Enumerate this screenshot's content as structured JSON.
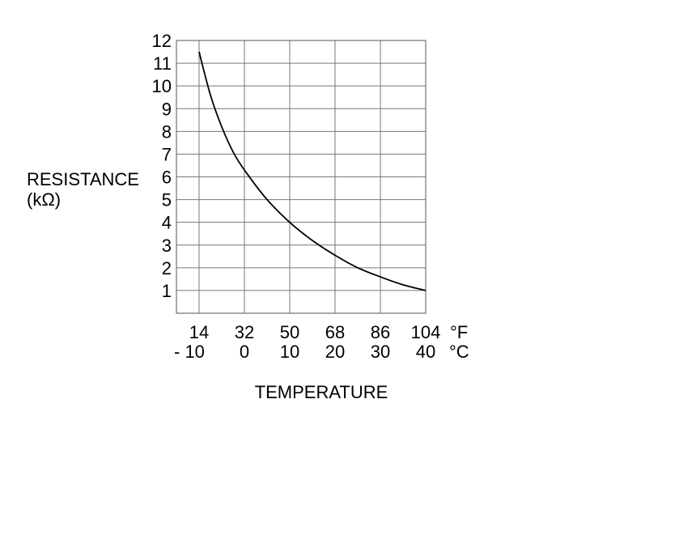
{
  "chart_data": {
    "type": "line",
    "title": "",
    "ylabel": [
      "RESISTANCE",
      "(kΩ)"
    ],
    "xlabel": "TEMPERATURE",
    "ylim": [
      0,
      12
    ],
    "xlim_c": [
      -15,
      40
    ],
    "grid": true,
    "y_ticks": [
      1,
      2,
      3,
      4,
      5,
      6,
      7,
      8,
      9,
      10,
      11,
      12
    ],
    "x_ticks_f": [
      "14",
      "32",
      "50",
      "68",
      "86",
      "104"
    ],
    "x_ticks_c": [
      "- 10",
      "0",
      "10",
      "20",
      "30",
      "40"
    ],
    "x_tick_values_c": [
      -10,
      0,
      10,
      20,
      30,
      40
    ],
    "unit_f": "°F",
    "unit_c": "°C",
    "series": [
      {
        "x_c": [
          -10,
          -7.5,
          -5,
          -2.5,
          0,
          5,
          10,
          15,
          20,
          25,
          30,
          35,
          40
        ],
        "y": [
          11.5,
          9.6,
          8.2,
          7.1,
          6.3,
          5.0,
          4.0,
          3.2,
          2.55,
          2.0,
          1.6,
          1.25,
          1.0
        ]
      }
    ]
  }
}
